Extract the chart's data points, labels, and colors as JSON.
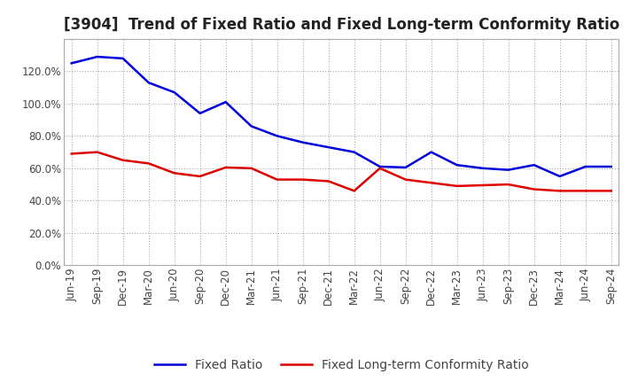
{
  "title": "[3904]  Trend of Fixed Ratio and Fixed Long-term Conformity Ratio",
  "x_labels": [
    "Jun-19",
    "Sep-19",
    "Dec-19",
    "Mar-20",
    "Jun-20",
    "Sep-20",
    "Dec-20",
    "Mar-21",
    "Jun-21",
    "Sep-21",
    "Dec-21",
    "Mar-22",
    "Jun-22",
    "Sep-22",
    "Dec-22",
    "Mar-23",
    "Jun-23",
    "Sep-23",
    "Dec-23",
    "Mar-24",
    "Jun-24",
    "Sep-24"
  ],
  "fixed_ratio": [
    125.0,
    129.0,
    128.0,
    113.0,
    107.0,
    94.0,
    101.0,
    86.0,
    80.0,
    76.0,
    73.0,
    70.0,
    61.0,
    60.5,
    70.0,
    62.0,
    60.0,
    59.0,
    62.0,
    55.0,
    61.0,
    61.0
  ],
  "fixed_lt_ratio": [
    69.0,
    70.0,
    65.0,
    63.0,
    57.0,
    55.0,
    60.5,
    60.0,
    53.0,
    53.0,
    52.0,
    46.0,
    60.0,
    53.0,
    51.0,
    49.0,
    49.5,
    50.0,
    47.0,
    46.0,
    46.0,
    46.0
  ],
  "fixed_ratio_color": "#0000dd",
  "fixed_lt_ratio_color": "#dd0000",
  "ylim": [
    0,
    140
  ],
  "yticks": [
    0,
    20,
    40,
    60,
    80,
    100,
    120
  ],
  "background_color": "#ffffff",
  "grid_color": "#aaaaaa",
  "title_fontsize": 12,
  "legend_fontsize": 10,
  "tick_fontsize": 8.5
}
